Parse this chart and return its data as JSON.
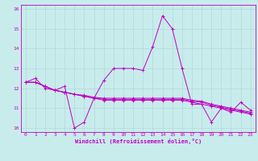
{
  "xlabel": "Windchill (Refroidissement éolien,°C)",
  "ylabel": "",
  "background_color": "#c8ecec",
  "grid_color": "#b0d8d8",
  "line_color": "#c000c0",
  "xlim": [
    -0.5,
    23.5
  ],
  "ylim": [
    9.8,
    16.2
  ],
  "xticks": [
    0,
    1,
    2,
    3,
    4,
    5,
    6,
    7,
    8,
    9,
    10,
    11,
    12,
    13,
    14,
    15,
    16,
    17,
    18,
    19,
    20,
    21,
    22,
    23
  ],
  "yticks": [
    10,
    11,
    12,
    13,
    14,
    15,
    16
  ],
  "series": [
    [
      12.3,
      12.5,
      12.0,
      11.9,
      12.1,
      10.0,
      10.3,
      11.5,
      12.4,
      13.0,
      13.0,
      13.0,
      12.9,
      14.1,
      15.65,
      15.0,
      13.0,
      11.2,
      11.2,
      10.3,
      11.0,
      10.8,
      11.3,
      10.9
    ],
    [
      12.3,
      12.3,
      12.1,
      11.9,
      11.8,
      11.7,
      11.6,
      11.5,
      11.4,
      11.4,
      11.4,
      11.4,
      11.4,
      11.4,
      11.4,
      11.4,
      11.4,
      11.3,
      11.2,
      11.1,
      11.0,
      10.9,
      10.8,
      10.7
    ],
    [
      12.3,
      12.3,
      12.1,
      11.9,
      11.8,
      11.7,
      11.6,
      11.5,
      11.45,
      11.45,
      11.45,
      11.45,
      11.45,
      11.45,
      11.45,
      11.45,
      11.45,
      11.35,
      11.3,
      11.15,
      11.05,
      10.95,
      10.85,
      10.75
    ],
    [
      12.3,
      12.3,
      12.1,
      11.9,
      11.8,
      11.7,
      11.65,
      11.55,
      11.5,
      11.5,
      11.5,
      11.5,
      11.5,
      11.5,
      11.5,
      11.5,
      11.5,
      11.4,
      11.35,
      11.2,
      11.1,
      11.0,
      10.9,
      10.8
    ]
  ]
}
